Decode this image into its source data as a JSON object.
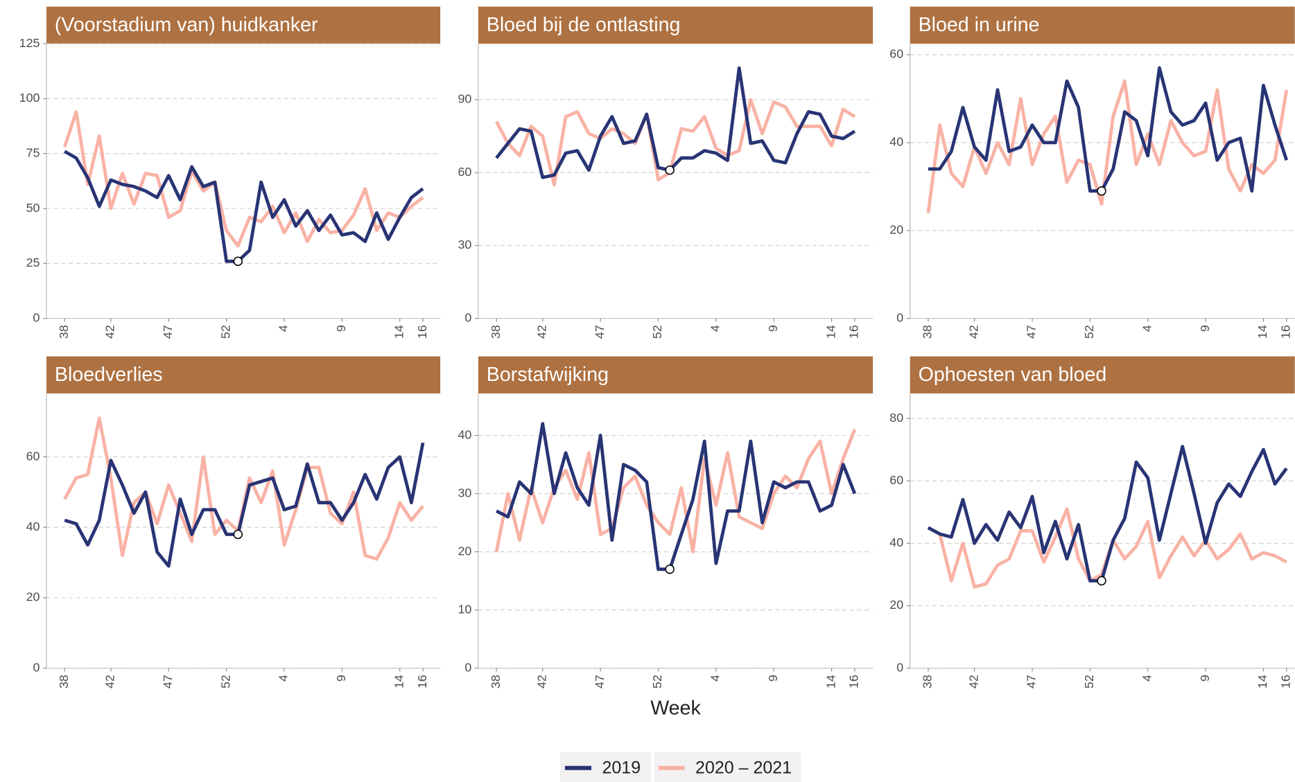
{
  "chart_data": [
    {
      "type": "line",
      "title": "(Voorstadium van) huidkanker",
      "categories": [
        38,
        null,
        null,
        null,
        42,
        null,
        null,
        null,
        null,
        47,
        null,
        null,
        null,
        null,
        52,
        null,
        null,
        null,
        null,
        4,
        null,
        null,
        null,
        null,
        9,
        null,
        null,
        null,
        null,
        14,
        null,
        16
      ],
      "series": [
        {
          "name": "2019",
          "color": "#283474",
          "values": [
            76,
            73,
            64,
            51,
            63,
            61,
            60,
            58,
            55,
            65,
            54,
            69,
            60,
            62,
            26,
            26,
            31,
            62,
            46,
            54,
            42,
            49,
            40,
            47,
            38,
            39,
            35,
            48,
            36,
            46,
            55,
            59
          ]
        },
        {
          "name": "2020 – 2021",
          "color": "#f9b2a5",
          "values": [
            78,
            94,
            61,
            83,
            50,
            66,
            52,
            66,
            65,
            46,
            49,
            67,
            58,
            62,
            40,
            33,
            46,
            44,
            51,
            39,
            48,
            35,
            45,
            39,
            40,
            47,
            59,
            40,
            48,
            46,
            51,
            55
          ]
        }
      ],
      "ylim": [
        0,
        125
      ],
      "yticks": [
        0,
        25,
        50,
        75,
        100,
        125
      ],
      "grid": true,
      "highlight_index": 15
    },
    {
      "type": "line",
      "title": "Bloed bij de ontlasting",
      "categories": [
        38,
        null,
        null,
        null,
        42,
        null,
        null,
        null,
        null,
        47,
        null,
        null,
        null,
        null,
        52,
        null,
        null,
        null,
        null,
        4,
        null,
        null,
        null,
        null,
        9,
        null,
        null,
        null,
        null,
        14,
        null,
        16
      ],
      "series": [
        {
          "name": "2019",
          "color": "#283474",
          "values": [
            66,
            72,
            78,
            77,
            58,
            59,
            68,
            69,
            61,
            75,
            83,
            72,
            73,
            84,
            62,
            61,
            66,
            66,
            69,
            68,
            65,
            103,
            72,
            73,
            65,
            64,
            76,
            85,
            84,
            75,
            74,
            77
          ]
        },
        {
          "name": "2020 – 2021",
          "color": "#f9b2a5",
          "values": [
            81,
            72,
            67,
            79,
            75,
            55,
            83,
            85,
            76,
            74,
            78,
            76,
            72,
            84,
            57,
            60,
            78,
            77,
            83,
            70,
            67,
            69,
            90,
            76,
            89,
            87,
            79,
            79,
            79,
            71,
            86,
            83
          ]
        }
      ],
      "ylim": [
        0,
        113
      ],
      "yticks": [
        0,
        30,
        60,
        90
      ],
      "grid": true,
      "highlight_index": 15
    },
    {
      "type": "line",
      "title": "Bloed in urine",
      "categories": [
        38,
        null,
        null,
        null,
        42,
        null,
        null,
        null,
        null,
        47,
        null,
        null,
        null,
        null,
        52,
        null,
        null,
        null,
        null,
        4,
        null,
        null,
        null,
        null,
        9,
        null,
        null,
        null,
        null,
        14,
        null,
        16
      ],
      "series": [
        {
          "name": "2019",
          "color": "#283474",
          "values": [
            34,
            34,
            38,
            48,
            39,
            36,
            52,
            38,
            39,
            44,
            40,
            40,
            54,
            48,
            29,
            29,
            34,
            47,
            45,
            37,
            57,
            47,
            44,
            45,
            49,
            36,
            40,
            41,
            29,
            53,
            44,
            36
          ]
        },
        {
          "name": "2020 – 2021",
          "color": "#f9b2a5",
          "values": [
            24,
            44,
            33,
            30,
            39,
            33,
            40,
            35,
            50,
            35,
            42,
            46,
            31,
            36,
            35,
            26,
            46,
            54,
            35,
            42,
            35,
            45,
            40,
            37,
            38,
            52,
            34,
            29,
            35,
            33,
            36,
            52
          ]
        }
      ],
      "ylim": [
        0,
        62.5
      ],
      "yticks": [
        0,
        20,
        40,
        60
      ],
      "grid": true,
      "highlight_index": 15
    },
    {
      "type": "line",
      "title": "Bloedverlies",
      "categories": [
        38,
        null,
        null,
        null,
        42,
        null,
        null,
        null,
        null,
        47,
        null,
        null,
        null,
        null,
        52,
        null,
        null,
        null,
        null,
        4,
        null,
        null,
        null,
        null,
        9,
        null,
        null,
        null,
        null,
        14,
        null,
        16
      ],
      "series": [
        {
          "name": "2019",
          "color": "#283474",
          "values": [
            42,
            41,
            35,
            42,
            59,
            52,
            44,
            50,
            33,
            29,
            48,
            38,
            45,
            45,
            38,
            38,
            52,
            53,
            54,
            45,
            46,
            58,
            47,
            47,
            42,
            47,
            55,
            48,
            57,
            60,
            47,
            64
          ]
        },
        {
          "name": "2020 – 2021",
          "color": "#f9b2a5",
          "values": [
            48,
            54,
            55,
            71,
            54,
            32,
            47,
            50,
            41,
            52,
            44,
            36,
            60,
            38,
            42,
            39,
            54,
            47,
            56,
            35,
            45,
            57,
            57,
            44,
            41,
            50,
            32,
            31,
            37,
            47,
            42,
            46
          ]
        }
      ],
      "ylim": [
        0,
        78
      ],
      "yticks": [
        0,
        20,
        40,
        60
      ],
      "grid": true,
      "highlight_index": 15
    },
    {
      "type": "line",
      "title": "Borstafwijking",
      "categories": [
        38,
        null,
        null,
        null,
        42,
        null,
        null,
        null,
        null,
        47,
        null,
        null,
        null,
        null,
        52,
        null,
        null,
        null,
        null,
        4,
        null,
        null,
        null,
        null,
        9,
        null,
        null,
        null,
        null,
        14,
        null,
        16
      ],
      "series": [
        {
          "name": "2019",
          "color": "#283474",
          "values": [
            27,
            26,
            32,
            30,
            42,
            30,
            37,
            31,
            28,
            40,
            22,
            35,
            34,
            32,
            17,
            17,
            23,
            29,
            39,
            18,
            27,
            27,
            39,
            25,
            32,
            31,
            32,
            32,
            27,
            28,
            35,
            30
          ]
        },
        {
          "name": "2020 – 2021",
          "color": "#f9b2a5",
          "values": [
            20,
            30,
            22,
            31,
            25,
            31,
            34,
            29,
            37,
            23,
            24,
            31,
            33,
            28,
            25,
            23,
            31,
            20,
            36,
            28,
            37,
            26,
            25,
            24,
            30,
            33,
            31,
            36,
            39,
            30,
            36,
            41
          ]
        }
      ],
      "ylim": [
        0,
        47.2
      ],
      "yticks": [
        0,
        10,
        20,
        30,
        40
      ],
      "grid": true,
      "highlight_index": 15
    },
    {
      "type": "line",
      "title": "Ophoesten van bloed",
      "categories": [
        38,
        null,
        null,
        null,
        42,
        null,
        null,
        null,
        null,
        47,
        null,
        null,
        null,
        null,
        52,
        null,
        null,
        null,
        null,
        4,
        null,
        null,
        null,
        null,
        9,
        null,
        null,
        null,
        null,
        14,
        null,
        16
      ],
      "series": [
        {
          "name": "2019",
          "color": "#283474",
          "values": [
            45,
            43,
            42,
            54,
            40,
            46,
            41,
            50,
            45,
            55,
            37,
            47,
            35,
            46,
            28,
            28,
            41,
            48,
            66,
            61,
            41,
            56,
            71,
            56,
            40,
            53,
            59,
            55,
            63,
            70,
            59,
            64
          ]
        },
        {
          "name": "2020 – 2021",
          "color": "#f9b2a5",
          "values": [
            45,
            43,
            28,
            40,
            26,
            27,
            33,
            35,
            44,
            44,
            34,
            42,
            51,
            35,
            28,
            30,
            41,
            35,
            39,
            47,
            29,
            36,
            42,
            36,
            41,
            35,
            38,
            43,
            35,
            37,
            36,
            34
          ]
        }
      ],
      "ylim": [
        0,
        88
      ],
      "yticks": [
        0,
        20,
        40,
        60,
        80
      ],
      "grid": true,
      "highlight_index": 15
    }
  ],
  "xlabel": "Week"
}
